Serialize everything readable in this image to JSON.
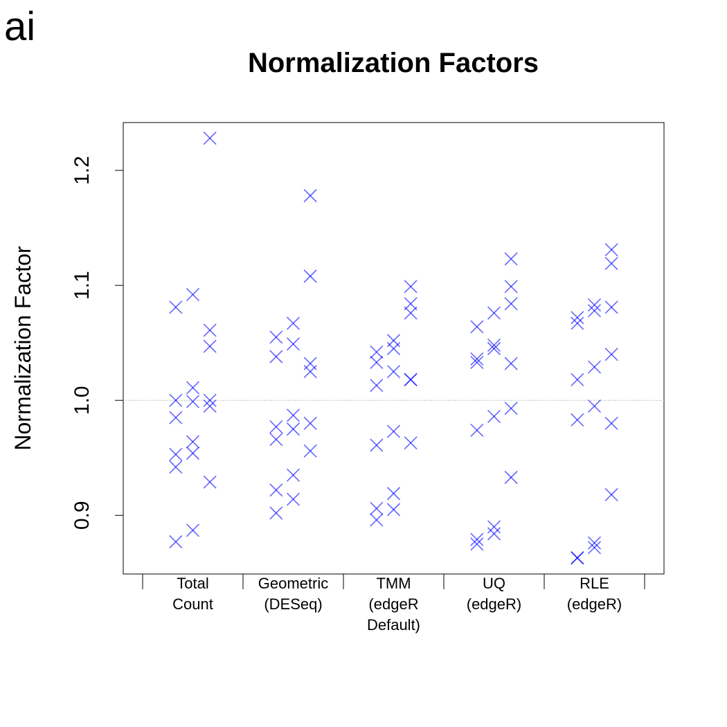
{
  "panel_label": "ai",
  "chart_data": {
    "type": "strip",
    "title": "Normalization Factors",
    "y_label": "Normalization Factor",
    "categories": [
      [
        "Total",
        "Count"
      ],
      [
        "Geometric",
        "(DESeq)"
      ],
      [
        "TMM",
        "(edgeR",
        "Default)"
      ],
      [
        "UQ",
        "(edgeR)"
      ],
      [
        "RLE",
        "(edgeR)"
      ]
    ],
    "series": [
      {
        "color": "#0000ff",
        "values": [
          [
            1.081,
            1.0,
            0.985,
            0.953,
            0.942,
            0.877
          ],
          [
            1.055,
            1.038,
            0.977,
            0.966,
            0.922,
            0.902
          ],
          [
            1.042,
            1.033,
            1.013,
            0.961,
            0.906,
            0.896
          ],
          [
            1.064,
            1.036,
            1.033,
            0.974,
            0.879,
            0.875
          ],
          [
            1.072,
            1.067,
            1.018,
            0.983,
            0.863,
            0.863
          ]
        ]
      },
      {
        "color": "#0000ff",
        "values": [
          [
            1.092,
            1.011,
            0.999,
            0.964,
            0.954,
            0.887
          ],
          [
            1.067,
            1.049,
            0.987,
            0.975,
            0.935,
            0.914
          ],
          [
            1.052,
            1.045,
            1.025,
            0.973,
            0.919,
            0.905
          ],
          [
            1.076,
            1.048,
            1.045,
            0.986,
            0.89,
            0.884
          ],
          [
            1.083,
            1.078,
            1.029,
            0.995,
            0.876,
            0.872
          ]
        ]
      },
      {
        "color": "#0000ff",
        "values": [
          [
            1.228,
            1.061,
            1.047,
            1.0,
            0.995,
            0.929
          ],
          [
            1.178,
            1.108,
            1.032,
            1.025,
            0.98,
            0.956
          ],
          [
            1.099,
            1.084,
            1.076,
            1.018,
            1.018,
            0.963
          ],
          [
            1.123,
            1.099,
            1.084,
            1.032,
            0.993,
            0.933
          ],
          [
            1.131,
            1.119,
            1.081,
            1.04,
            0.98,
            0.918
          ]
        ]
      }
    ],
    "ylim": [
      0.849,
      1.2416
    ],
    "yticks": [
      0.9,
      {
        "value": 1,
        "label": "1.0"
      },
      1.1,
      1.2
    ],
    "hline": 1
  }
}
